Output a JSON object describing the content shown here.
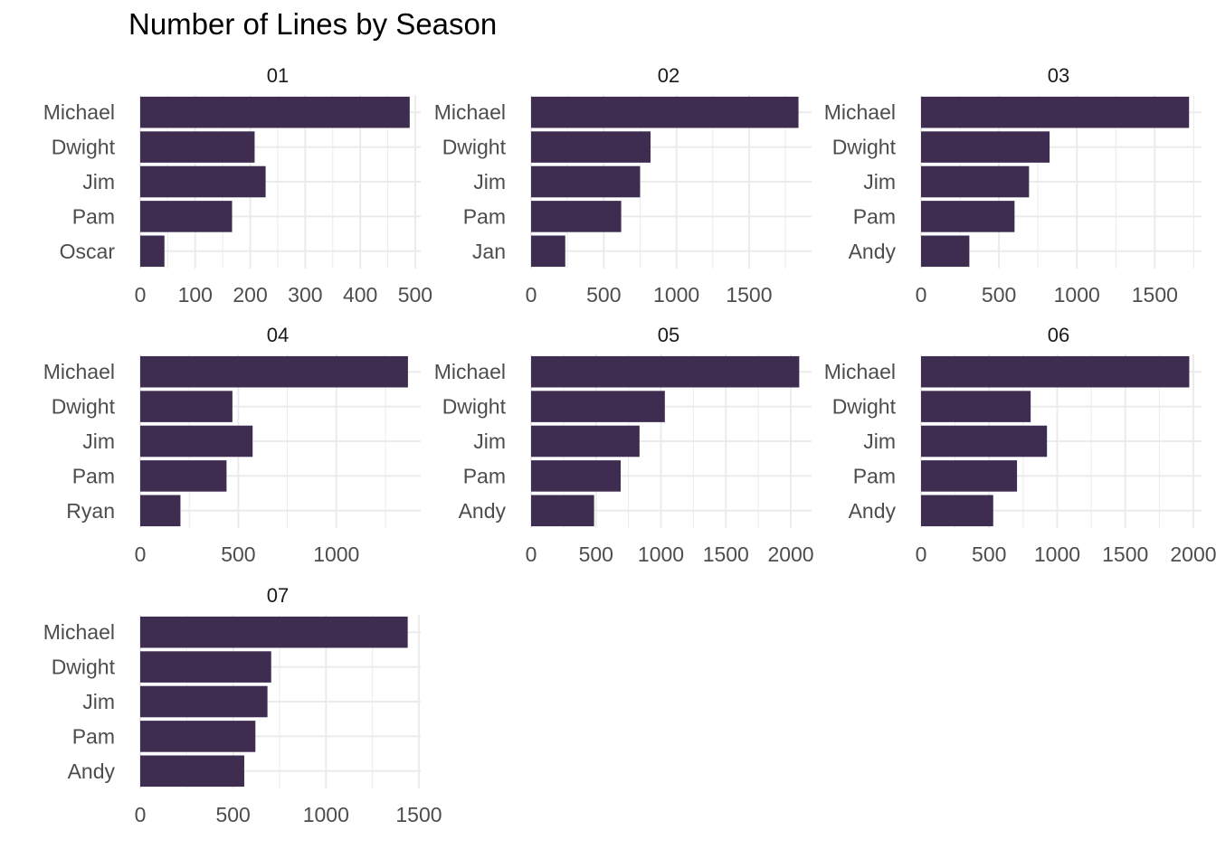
{
  "chart_data": {
    "type": "bar",
    "orientation": "horizontal",
    "title": "Number of Lines by Season",
    "xlabel": "",
    "ylabel": "",
    "grid": true,
    "bar_color": "#3e2d50",
    "grid_color": "#ebebeb",
    "facets": [
      {
        "title": "01",
        "categories": [
          "Michael",
          "Dwight",
          "Jim",
          "Pam",
          "Oscar"
        ],
        "values": [
          490,
          208,
          228,
          167,
          44
        ],
        "xlim": [
          0,
          510
        ],
        "ticks": [
          0,
          100,
          200,
          300,
          400,
          500
        ]
      },
      {
        "title": "02",
        "categories": [
          "Michael",
          "Dwight",
          "Jim",
          "Pam",
          "Jan"
        ],
        "values": [
          1840,
          822,
          750,
          620,
          235
        ],
        "xlim": [
          0,
          1930
        ],
        "ticks": [
          0,
          500,
          1000,
          1500
        ]
      },
      {
        "title": "03",
        "categories": [
          "Michael",
          "Dwight",
          "Jim",
          "Pam",
          "Andy"
        ],
        "values": [
          1720,
          825,
          693,
          600,
          310
        ],
        "xlim": [
          0,
          1800
        ],
        "ticks": [
          0,
          500,
          1000,
          1500
        ]
      },
      {
        "title": "04",
        "categories": [
          "Michael",
          "Dwight",
          "Jim",
          "Pam",
          "Ryan"
        ],
        "values": [
          1365,
          470,
          573,
          440,
          205
        ],
        "xlim": [
          0,
          1430
        ],
        "ticks": [
          0,
          500,
          1000
        ]
      },
      {
        "title": "05",
        "categories": [
          "Michael",
          "Dwight",
          "Jim",
          "Pam",
          "Andy"
        ],
        "values": [
          2065,
          1030,
          835,
          690,
          485
        ],
        "xlim": [
          0,
          2160
        ],
        "ticks": [
          0,
          500,
          1000,
          1500,
          2000
        ]
      },
      {
        "title": "06",
        "categories": [
          "Michael",
          "Dwight",
          "Jim",
          "Pam",
          "Andy"
        ],
        "values": [
          1970,
          805,
          925,
          705,
          530
        ],
        "xlim": [
          0,
          2060
        ],
        "ticks": [
          0,
          500,
          1000,
          1500,
          2000
        ]
      },
      {
        "title": "07",
        "categories": [
          "Michael",
          "Dwight",
          "Jim",
          "Pam",
          "Andy"
        ],
        "values": [
          1440,
          705,
          685,
          620,
          560
        ],
        "xlim": [
          0,
          1510
        ],
        "ticks": [
          0,
          500,
          1000,
          1500
        ]
      }
    ]
  }
}
